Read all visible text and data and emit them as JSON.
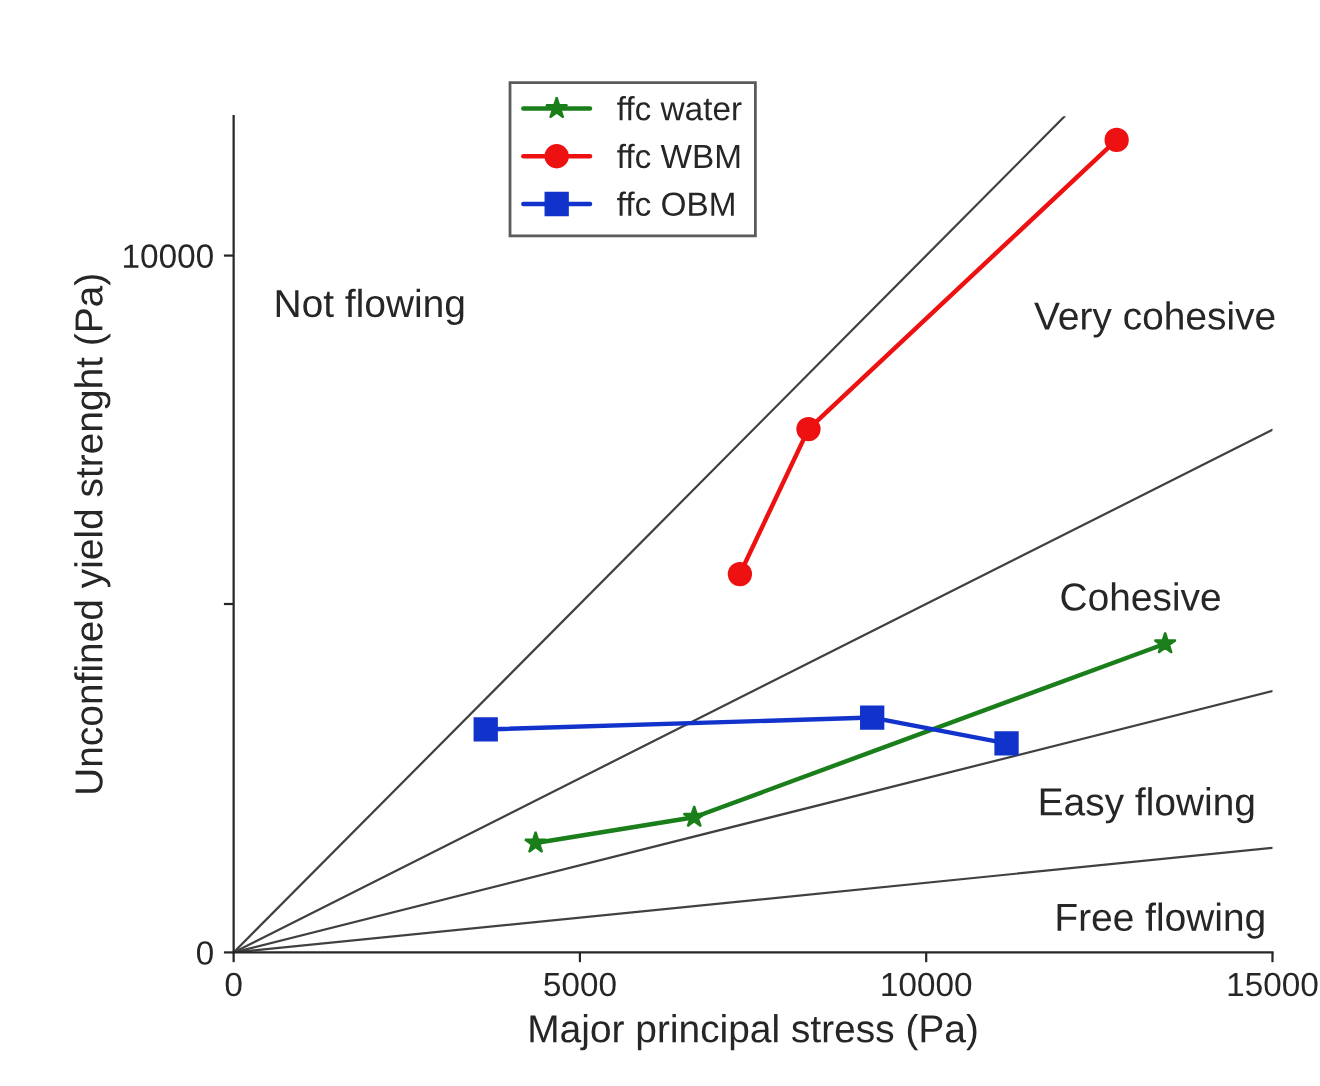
{
  "chart_data": {
    "type": "line",
    "xlabel": "Major principal stress (Pa)",
    "ylabel": "Unconfined yield strenght (Pa)",
    "xlim": [
      0,
      15000
    ],
    "ylim": [
      0,
      12000
    ],
    "xticks": [
      0,
      5000,
      10000,
      15000
    ],
    "yticks": [
      0,
      {
        "value": 5000,
        "label": null
      },
      10000
    ],
    "grid": false,
    "legend": "top left",
    "series": [
      {
        "color": "#404040",
        "x": [
          0,
          12000
        ],
        "values": [
          0,
          12000
        ],
        "marker": "none"
      },
      {
        "color": "#404040",
        "x": [
          0,
          15000
        ],
        "values": [
          0,
          7500
        ],
        "marker": "none"
      },
      {
        "color": "#404040",
        "x": [
          0,
          15000
        ],
        "values": [
          0,
          3750
        ],
        "marker": "none"
      },
      {
        "color": "#404040",
        "x": [
          0,
          15000
        ],
        "values": [
          0,
          1500
        ],
        "marker": "none"
      },
      {
        "name": "ffc water",
        "color": "#1a7f1a",
        "x": [
          4360,
          6650,
          13450
        ],
        "values": [
          1570,
          1940,
          4430
        ],
        "marker": "star"
      },
      {
        "name": "ffc WBM",
        "color": "#ee1111",
        "x": [
          7310,
          8300,
          12750
        ],
        "values": [
          5430,
          7510,
          11660
        ],
        "marker": "circle"
      },
      {
        "name": "ffc OBM",
        "color": "#1133cc",
        "x": [
          3640,
          9220,
          11160
        ],
        "values": [
          3200,
          3370,
          3000
        ],
        "marker": "square"
      }
    ],
    "annotations": [
      "Not flowing",
      "Very cohesive",
      "Cohesive",
      "Easy flowing",
      "Free flowing"
    ]
  }
}
